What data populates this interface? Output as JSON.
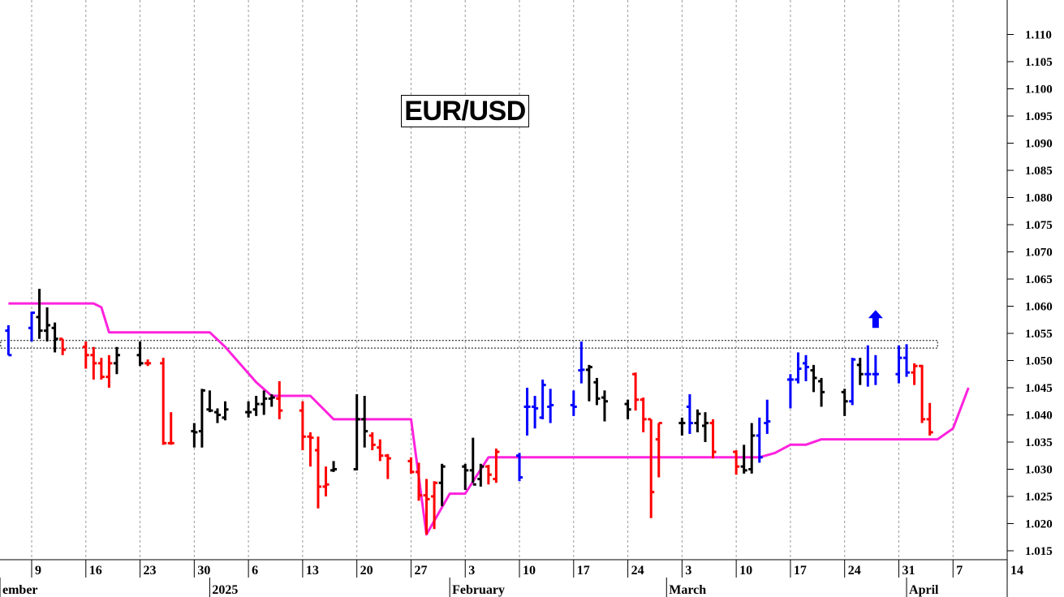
{
  "chart_data": {
    "type": "ohlc",
    "title": "EUR/USD",
    "colors": {
      "down": "#ff0000",
      "neutral": "#000000",
      "up": "#0000ff",
      "trailing_stop": "#ff22dd",
      "arrow": "#0000ff"
    },
    "y_axis": {
      "position": "right",
      "range": [
        1.013,
        1.114
      ],
      "ticks": [
        "1.015",
        "1.020",
        "1.025",
        "1.030",
        "1.035",
        "1.040",
        "1.045",
        "1.050",
        "1.055",
        "1.060",
        "1.065",
        "1.070",
        "1.075",
        "1.080",
        "1.085",
        "1.090",
        "1.095",
        "1.100",
        "1.105",
        "1.110"
      ]
    },
    "x_axis": {
      "range": [
        "2024-12-05",
        "2025-04-16"
      ],
      "ticks": [
        {
          "date": "2024-12-09",
          "label": "9"
        },
        {
          "date": "2024-12-16",
          "label": "16"
        },
        {
          "date": "2024-12-23",
          "label": "23"
        },
        {
          "date": "2024-12-30",
          "label": "30"
        },
        {
          "date": "2025-01-06",
          "label": "6"
        },
        {
          "date": "2025-01-13",
          "label": "13"
        },
        {
          "date": "2025-01-20",
          "label": "20"
        },
        {
          "date": "2025-01-27",
          "label": "27"
        },
        {
          "date": "2025-02-03",
          "label": "3"
        },
        {
          "date": "2025-02-10",
          "label": "10"
        },
        {
          "date": "2025-02-17",
          "label": "17"
        },
        {
          "date": "2025-02-24",
          "label": "24"
        },
        {
          "date": "2025-03-03",
          "label": "3"
        },
        {
          "date": "2025-03-10",
          "label": "10"
        },
        {
          "date": "2025-03-17",
          "label": "17"
        },
        {
          "date": "2025-03-24",
          "label": "24"
        },
        {
          "date": "2025-03-31",
          "label": "31"
        },
        {
          "date": "2025-04-07",
          "label": "7"
        },
        {
          "date": "2025-04-14",
          "label": "14"
        }
      ],
      "month_labels": [
        {
          "date": "2024-12-01",
          "label": "ember"
        },
        {
          "date": "2025-01-01",
          "label": "2025"
        },
        {
          "date": "2025-02-01",
          "label": "February"
        },
        {
          "date": "2025-03-01",
          "label": "March"
        },
        {
          "date": "2025-04-01",
          "label": "April"
        }
      ]
    },
    "bars": [
      {
        "date": "2024-12-06",
        "open": 1.0555,
        "high": 1.0565,
        "low": 1.051,
        "close": 1.051,
        "color": "up"
      },
      {
        "date": "2024-12-09",
        "open": 1.056,
        "high": 1.059,
        "low": 1.0535,
        "close": 1.0588,
        "color": "up"
      },
      {
        "date": "2024-12-10",
        "open": 1.058,
        "high": 1.0632,
        "low": 1.054,
        "close": 1.0555,
        "color": "neutral"
      },
      {
        "date": "2024-12-11",
        "open": 1.0555,
        "high": 1.0598,
        "low": 1.0535,
        "close": 1.0565,
        "color": "neutral"
      },
      {
        "date": "2024-12-12",
        "open": 1.056,
        "high": 1.057,
        "low": 1.0515,
        "close": 1.054,
        "color": "neutral"
      },
      {
        "date": "2024-12-13",
        "open": 1.054,
        "high": 1.054,
        "low": 1.051,
        "close": 1.052,
        "color": "down"
      },
      {
        "date": "2024-12-16",
        "open": 1.0525,
        "high": 1.0535,
        "low": 1.0485,
        "close": 1.051,
        "color": "down"
      },
      {
        "date": "2024-12-17",
        "open": 1.051,
        "high": 1.0525,
        "low": 1.0465,
        "close": 1.0495,
        "color": "down"
      },
      {
        "date": "2024-12-18",
        "open": 1.0495,
        "high": 1.0505,
        "low": 1.0465,
        "close": 1.047,
        "color": "down"
      },
      {
        "date": "2024-12-19",
        "open": 1.047,
        "high": 1.051,
        "low": 1.045,
        "close": 1.0495,
        "color": "down"
      },
      {
        "date": "2024-12-20",
        "open": 1.0495,
        "high": 1.0525,
        "low": 1.0475,
        "close": 1.051,
        "color": "neutral"
      },
      {
        "date": "2024-12-23",
        "open": 1.051,
        "high": 1.0535,
        "low": 1.049,
        "close": 1.0495,
        "color": "neutral"
      },
      {
        "date": "2024-12-24",
        "open": 1.0495,
        "high": 1.0502,
        "low": 1.049,
        "close": 1.0495,
        "color": "down"
      },
      {
        "date": "2024-12-26",
        "open": 1.0495,
        "high": 1.0505,
        "low": 1.0345,
        "close": 1.0348,
        "color": "down"
      },
      {
        "date": "2024-12-27",
        "open": 1.0348,
        "high": 1.0405,
        "low": 1.0345,
        "close": 1.0348,
        "color": "down"
      },
      {
        "date": "2024-12-30",
        "open": 1.037,
        "high": 1.0385,
        "low": 1.034,
        "close": 1.0368,
        "color": "neutral"
      },
      {
        "date": "2024-12-31",
        "open": 1.037,
        "high": 1.0448,
        "low": 1.034,
        "close": 1.0445,
        "color": "neutral"
      },
      {
        "date": "2025-01-01",
        "open": 1.041,
        "high": 1.0445,
        "low": 1.0405,
        "close": 1.0408,
        "color": "neutral"
      },
      {
        "date": "2025-01-02",
        "open": 1.0405,
        "high": 1.0412,
        "low": 1.0385,
        "close": 1.04,
        "color": "neutral"
      },
      {
        "date": "2025-01-03",
        "open": 1.0395,
        "high": 1.0425,
        "low": 1.039,
        "close": 1.041,
        "color": "neutral"
      },
      {
        "date": "2025-01-06",
        "open": 1.0405,
        "high": 1.0425,
        "low": 1.0395,
        "close": 1.0405,
        "color": "neutral"
      },
      {
        "date": "2025-01-07",
        "open": 1.041,
        "high": 1.0435,
        "low": 1.0398,
        "close": 1.042,
        "color": "neutral"
      },
      {
        "date": "2025-01-08",
        "open": 1.042,
        "high": 1.0445,
        "low": 1.04,
        "close": 1.043,
        "color": "neutral"
      },
      {
        "date": "2025-01-09",
        "open": 1.043,
        "high": 1.0438,
        "low": 1.0415,
        "close": 1.0432,
        "color": "neutral"
      },
      {
        "date": "2025-01-10",
        "open": 1.043,
        "high": 1.0462,
        "low": 1.0392,
        "close": 1.0408,
        "color": "down"
      },
      {
        "date": "2025-01-13",
        "open": 1.0408,
        "high": 1.0425,
        "low": 1.0335,
        "close": 1.036,
        "color": "down"
      },
      {
        "date": "2025-01-14",
        "open": 1.036,
        "high": 1.0368,
        "low": 1.0305,
        "close": 1.0358,
        "color": "down"
      },
      {
        "date": "2025-01-15",
        "open": 1.0335,
        "high": 1.036,
        "low": 1.0228,
        "close": 1.0268,
        "color": "down"
      },
      {
        "date": "2025-01-16",
        "open": 1.0268,
        "high": 1.0305,
        "low": 1.025,
        "close": 1.0272,
        "color": "down"
      },
      {
        "date": "2025-01-17",
        "open": 1.0298,
        "high": 1.0315,
        "low": 1.0295,
        "close": 1.03,
        "color": "neutral"
      },
      {
        "date": "2025-01-20",
        "open": 1.03,
        "high": 1.0438,
        "low": 1.0298,
        "close": 1.0392,
        "color": "neutral"
      },
      {
        "date": "2025-01-21",
        "open": 1.0392,
        "high": 1.0435,
        "low": 1.034,
        "close": 1.037,
        "color": "neutral"
      },
      {
        "date": "2025-01-22",
        "open": 1.0362,
        "high": 1.0368,
        "low": 1.0335,
        "close": 1.0345,
        "color": "down"
      },
      {
        "date": "2025-01-23",
        "open": 1.034,
        "high": 1.0355,
        "low": 1.0315,
        "close": 1.0325,
        "color": "down"
      },
      {
        "date": "2025-01-24",
        "open": 1.0325,
        "high": 1.0328,
        "low": 1.0282,
        "close": 1.032,
        "color": "down"
      },
      {
        "date": "2025-01-27",
        "open": 1.0315,
        "high": 1.0322,
        "low": 1.0292,
        "close": 1.0295,
        "color": "down"
      },
      {
        "date": "2025-01-28",
        "open": 1.0295,
        "high": 1.0312,
        "low": 1.0242,
        "close": 1.0252,
        "color": "down"
      },
      {
        "date": "2025-01-29",
        "open": 1.0252,
        "high": 1.0282,
        "low": 1.018,
        "close": 1.0245,
        "color": "down"
      },
      {
        "date": "2025-01-30",
        "open": 1.025,
        "high": 1.0278,
        "low": 1.019,
        "close": 1.0275,
        "color": "down"
      },
      {
        "date": "2025-01-31",
        "open": 1.0275,
        "high": 1.031,
        "low": 1.0232,
        "close": 1.0305,
        "color": "neutral"
      },
      {
        "date": "2025-02-03",
        "open": 1.0305,
        "high": 1.031,
        "low": 1.0262,
        "close": 1.0298,
        "color": "neutral"
      },
      {
        "date": "2025-02-04",
        "open": 1.0298,
        "high": 1.0358,
        "low": 1.0275,
        "close": 1.0272,
        "color": "neutral"
      },
      {
        "date": "2025-02-05",
        "open": 1.0282,
        "high": 1.031,
        "low": 1.0268,
        "close": 1.0305,
        "color": "neutral"
      },
      {
        "date": "2025-02-06",
        "open": 1.0305,
        "high": 1.0308,
        "low": 1.0272,
        "close": 1.029,
        "color": "down"
      },
      {
        "date": "2025-02-07",
        "open": 1.0282,
        "high": 1.0338,
        "low": 1.0275,
        "close": 1.0332,
        "color": "down"
      },
      {
        "date": "2025-02-10",
        "open": 1.0325,
        "high": 1.033,
        "low": 1.0278,
        "close": 1.0285,
        "color": "up"
      },
      {
        "date": "2025-02-11",
        "open": 1.0415,
        "high": 1.045,
        "low": 1.0362,
        "close": 1.0415,
        "color": "up"
      },
      {
        "date": "2025-02-12",
        "open": 1.0415,
        "high": 1.0435,
        "low": 1.0375,
        "close": 1.0412,
        "color": "up"
      },
      {
        "date": "2025-02-13",
        "open": 1.0395,
        "high": 1.0465,
        "low": 1.0392,
        "close": 1.0455,
        "color": "up"
      },
      {
        "date": "2025-02-14",
        "open": 1.0415,
        "high": 1.0448,
        "low": 1.0385,
        "close": 1.0418,
        "color": "up"
      },
      {
        "date": "2025-02-17",
        "open": 1.0418,
        "high": 1.0445,
        "low": 1.0398,
        "close": 1.0415,
        "color": "up"
      },
      {
        "date": "2025-02-18",
        "open": 1.0482,
        "high": 1.0535,
        "low": 1.0458,
        "close": 1.0483,
        "color": "up"
      },
      {
        "date": "2025-02-19",
        "open": 1.0483,
        "high": 1.0492,
        "low": 1.0425,
        "close": 1.0488,
        "color": "neutral"
      },
      {
        "date": "2025-02-20",
        "open": 1.046,
        "high": 1.0468,
        "low": 1.0418,
        "close": 1.043,
        "color": "neutral"
      },
      {
        "date": "2025-02-21",
        "open": 1.0432,
        "high": 1.0445,
        "low": 1.0388,
        "close": 1.0425,
        "color": "neutral"
      },
      {
        "date": "2025-02-24",
        "open": 1.042,
        "high": 1.0428,
        "low": 1.0392,
        "close": 1.041,
        "color": "neutral"
      },
      {
        "date": "2025-02-25",
        "open": 1.0475,
        "high": 1.0478,
        "low": 1.0408,
        "close": 1.0428,
        "color": "down"
      },
      {
        "date": "2025-02-26",
        "open": 1.0428,
        "high": 1.0432,
        "low": 1.0368,
        "close": 1.0392,
        "color": "down"
      },
      {
        "date": "2025-02-27",
        "open": 1.0392,
        "high": 1.0392,
        "low": 1.021,
        "close": 1.0258,
        "color": "down"
      },
      {
        "date": "2025-02-28",
        "open": 1.0355,
        "high": 1.0385,
        "low": 1.0285,
        "close": 1.0385,
        "color": "down"
      },
      {
        "date": "2025-03-03",
        "open": 1.0385,
        "high": 1.0395,
        "low": 1.0362,
        "close": 1.0385,
        "color": "neutral"
      },
      {
        "date": "2025-03-04",
        "open": 1.0415,
        "high": 1.0438,
        "low": 1.0365,
        "close": 1.0385,
        "color": "up"
      },
      {
        "date": "2025-03-05",
        "open": 1.0385,
        "high": 1.041,
        "low": 1.0368,
        "close": 1.0402,
        "color": "neutral"
      },
      {
        "date": "2025-03-06",
        "open": 1.038,
        "high": 1.0405,
        "low": 1.035,
        "close": 1.0385,
        "color": "neutral"
      },
      {
        "date": "2025-03-07",
        "open": 1.0385,
        "high": 1.0392,
        "low": 1.032,
        "close": 1.0332,
        "color": "down"
      },
      {
        "date": "2025-03-10",
        "open": 1.0332,
        "high": 1.0335,
        "low": 1.029,
        "close": 1.0305,
        "color": "down"
      },
      {
        "date": "2025-03-11",
        "open": 1.0305,
        "high": 1.0345,
        "low": 1.0292,
        "close": 1.0298,
        "color": "neutral"
      },
      {
        "date": "2025-03-12",
        "open": 1.03,
        "high": 1.0385,
        "low": 1.0292,
        "close": 1.0362,
        "color": "neutral"
      },
      {
        "date": "2025-03-13",
        "open": 1.0362,
        "high": 1.0395,
        "low": 1.0312,
        "close": 1.0322,
        "color": "up"
      },
      {
        "date": "2025-03-14",
        "open": 1.0385,
        "high": 1.0428,
        "low": 1.0365,
        "close": 1.0388,
        "color": "up"
      },
      {
        "date": "2025-03-17",
        "open": 1.0465,
        "high": 1.0475,
        "low": 1.0412,
        "close": 1.0465,
        "color": "up"
      },
      {
        "date": "2025-03-18",
        "open": 1.0465,
        "high": 1.0515,
        "low": 1.0458,
        "close": 1.0485,
        "color": "up"
      },
      {
        "date": "2025-03-19",
        "open": 1.0495,
        "high": 1.051,
        "low": 1.0462,
        "close": 1.0488,
        "color": "up"
      },
      {
        "date": "2025-03-20",
        "open": 1.0482,
        "high": 1.0492,
        "low": 1.0442,
        "close": 1.0468,
        "color": "neutral"
      },
      {
        "date": "2025-03-21",
        "open": 1.0462,
        "high": 1.0468,
        "low": 1.0415,
        "close": 1.0442,
        "color": "neutral"
      },
      {
        "date": "2025-03-24",
        "open": 1.0442,
        "high": 1.0448,
        "low": 1.0398,
        "close": 1.0425,
        "color": "neutral"
      },
      {
        "date": "2025-03-25",
        "open": 1.0425,
        "high": 1.0505,
        "low": 1.0418,
        "close": 1.0502,
        "color": "up"
      },
      {
        "date": "2025-03-26",
        "open": 1.0492,
        "high": 1.0505,
        "low": 1.0455,
        "close": 1.0475,
        "color": "neutral"
      },
      {
        "date": "2025-03-27",
        "open": 1.0475,
        "high": 1.0528,
        "low": 1.0452,
        "close": 1.0475,
        "color": "up"
      },
      {
        "date": "2025-03-28",
        "open": 1.0475,
        "high": 1.051,
        "low": 1.0455,
        "close": 1.0475,
        "color": "up"
      },
      {
        "date": "2025-03-31",
        "open": 1.0475,
        "high": 1.0528,
        "low": 1.0458,
        "close": 1.0505,
        "color": "up"
      },
      {
        "date": "2025-04-01",
        "open": 1.0505,
        "high": 1.053,
        "low": 1.047,
        "close": 1.0478,
        "color": "up"
      },
      {
        "date": "2025-04-02",
        "open": 1.0478,
        "high": 1.0495,
        "low": 1.0455,
        "close": 1.049,
        "color": "down"
      },
      {
        "date": "2025-04-03",
        "open": 1.049,
        "high": 1.0492,
        "low": 1.0385,
        "close": 1.0392,
        "color": "down"
      },
      {
        "date": "2025-04-04",
        "open": 1.0392,
        "high": 1.0422,
        "low": 1.0362,
        "close": 1.0368,
        "color": "down"
      }
    ],
    "trailing_stop": [
      {
        "date": "2024-12-06",
        "value": 1.0605
      },
      {
        "date": "2024-12-17",
        "value": 1.0605
      },
      {
        "date": "2024-12-18",
        "value": 1.0598
      },
      {
        "date": "2024-12-19",
        "value": 1.0552
      },
      {
        "date": "2025-01-01",
        "value": 1.0552
      },
      {
        "date": "2025-01-03",
        "value": 1.0525
      },
      {
        "date": "2025-01-07",
        "value": 1.046
      },
      {
        "date": "2025-01-09",
        "value": 1.0435
      },
      {
        "date": "2025-01-14",
        "value": 1.0435
      },
      {
        "date": "2025-01-17",
        "value": 1.0392
      },
      {
        "date": "2025-01-27",
        "value": 1.0392
      },
      {
        "date": "2025-01-29",
        "value": 1.018
      },
      {
        "date": "2025-02-01",
        "value": 1.0255
      },
      {
        "date": "2025-02-03",
        "value": 1.0255
      },
      {
        "date": "2025-02-06",
        "value": 1.0322
      },
      {
        "date": "2025-03-13",
        "value": 1.0322
      },
      {
        "date": "2025-03-15",
        "value": 1.033
      },
      {
        "date": "2025-03-17",
        "value": 1.0345
      },
      {
        "date": "2025-03-19",
        "value": 1.0345
      },
      {
        "date": "2025-03-21",
        "value": 1.0355
      },
      {
        "date": "2025-04-05",
        "value": 1.0355
      },
      {
        "date": "2025-04-07",
        "value": 1.0375
      },
      {
        "date": "2025-04-09",
        "value": 1.045
      }
    ],
    "annotation_arrow": {
      "date": "2025-03-28",
      "value": 1.0575
    },
    "resistance_zones": [
      {
        "from": "2024-12-05",
        "to": "2025-04-05",
        "low": 1.0523,
        "high": 1.0537
      }
    ]
  }
}
